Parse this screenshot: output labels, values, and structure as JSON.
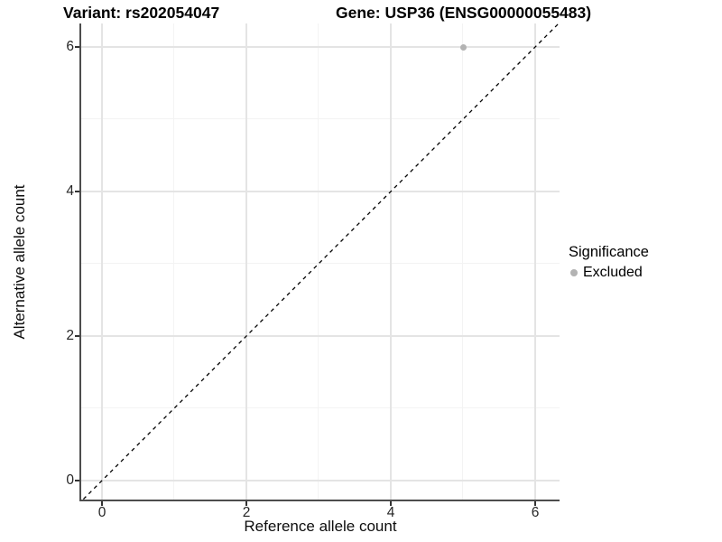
{
  "header": {
    "variant_title": "Variant: rs202054047",
    "gene_title": "Gene: USP36 (ENSG00000055483)"
  },
  "axes": {
    "x_label": "Reference allele count",
    "y_label": "Alternative allele count",
    "x_tick_labels": [
      "0",
      "2",
      "4",
      "6"
    ],
    "y_tick_labels": [
      "0",
      "2",
      "4",
      "6"
    ]
  },
  "legend": {
    "title": "Significance",
    "items": [
      {
        "label": "Excluded",
        "color": "#b3b3b3",
        "marker": "circle"
      }
    ]
  },
  "colors": {
    "background": "#ffffff",
    "axis_line": "#4d4d4d",
    "major_grid": "#e4e4e4",
    "minor_grid": "#f3f3f3",
    "point": "#b3b3b3",
    "reference_line": "#000000",
    "text": "#000000"
  },
  "chart_data": {
    "type": "scatter",
    "title": "Variant: rs202054047 | Gene: USP36 (ENSG00000055483)",
    "xlabel": "Reference allele count",
    "ylabel": "Alternative allele count",
    "x_ticks": [
      0,
      2,
      4,
      6
    ],
    "y_ticks": [
      0,
      2,
      4,
      6
    ],
    "x_minor_ticks": [
      1,
      3,
      5
    ],
    "y_minor_ticks": [
      1,
      3,
      5
    ],
    "xlim": [
      -0.29,
      6.34
    ],
    "ylim": [
      -0.26,
      6.33
    ],
    "grid": "major+minor",
    "legend_title": "Significance",
    "legend_position": "right-center",
    "series": [
      {
        "name": "Excluded",
        "color": "#b3b3b3",
        "marker": "circle",
        "marker_diameter_px": 7,
        "points": [
          {
            "x": 5,
            "y": 6
          }
        ]
      }
    ],
    "reference_line": {
      "equation": "y = x",
      "style": "dashed",
      "color": "#000000"
    }
  }
}
